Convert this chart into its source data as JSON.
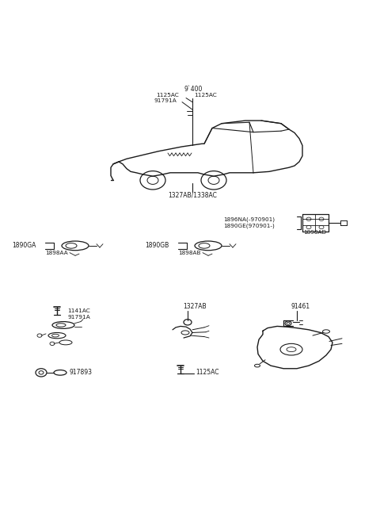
{
  "bg_color": "#ffffff",
  "line_color": "#1a1a1a",
  "fig_width": 4.8,
  "fig_height": 6.57,
  "dpi": 100,
  "labels": {
    "9400": "9`400",
    "1125AC_L": "1125AC",
    "1125AC_R": "1125AC",
    "91791A": "91791A",
    "1327AB_1338AC": "1327AB/1338AC",
    "1896NA": "1896NA(-970901)",
    "1890GE": "1890GE(970901-)",
    "1898AD": "1898AD",
    "1890GA": "1890GA",
    "1898AA": "1898AA",
    "1890GB": "1890GB",
    "1898AB": "1898AB",
    "1141AC": "1141AC",
    "91791A_2": "91791A",
    "917893": "917893",
    "1327AB_2": "1327AB",
    "1125AC_2": "1125AC",
    "91461": "91461"
  }
}
